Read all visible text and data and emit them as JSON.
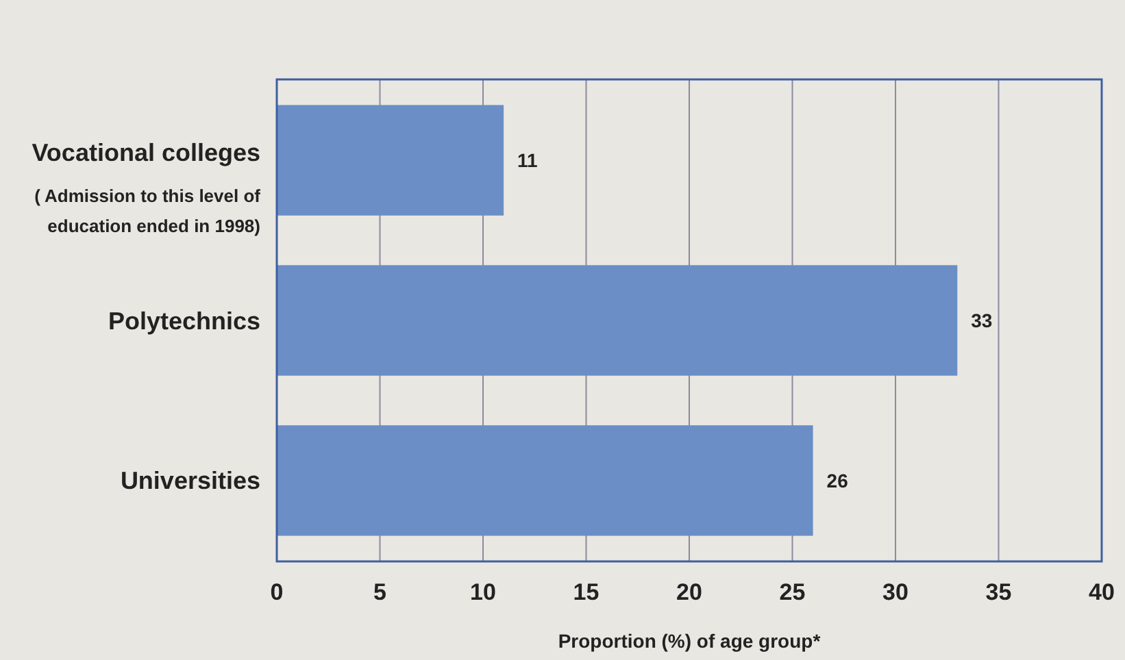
{
  "chart_data": {
    "type": "bar",
    "orientation": "horizontal",
    "xlabel": "Proportion (%) of age group*",
    "categories": [
      "Vocational colleges\n( Admission to this level of\neducation ended in 1998)",
      "Polytechnics",
      "Universities"
    ],
    "values": [
      11,
      33,
      26
    ],
    "color": "#6b8ec6",
    "data_labels": true,
    "grid": "x",
    "xlim": [
      0,
      40
    ],
    "xticks": [
      0,
      5,
      10,
      15,
      20,
      25,
      30,
      35,
      40
    ]
  }
}
